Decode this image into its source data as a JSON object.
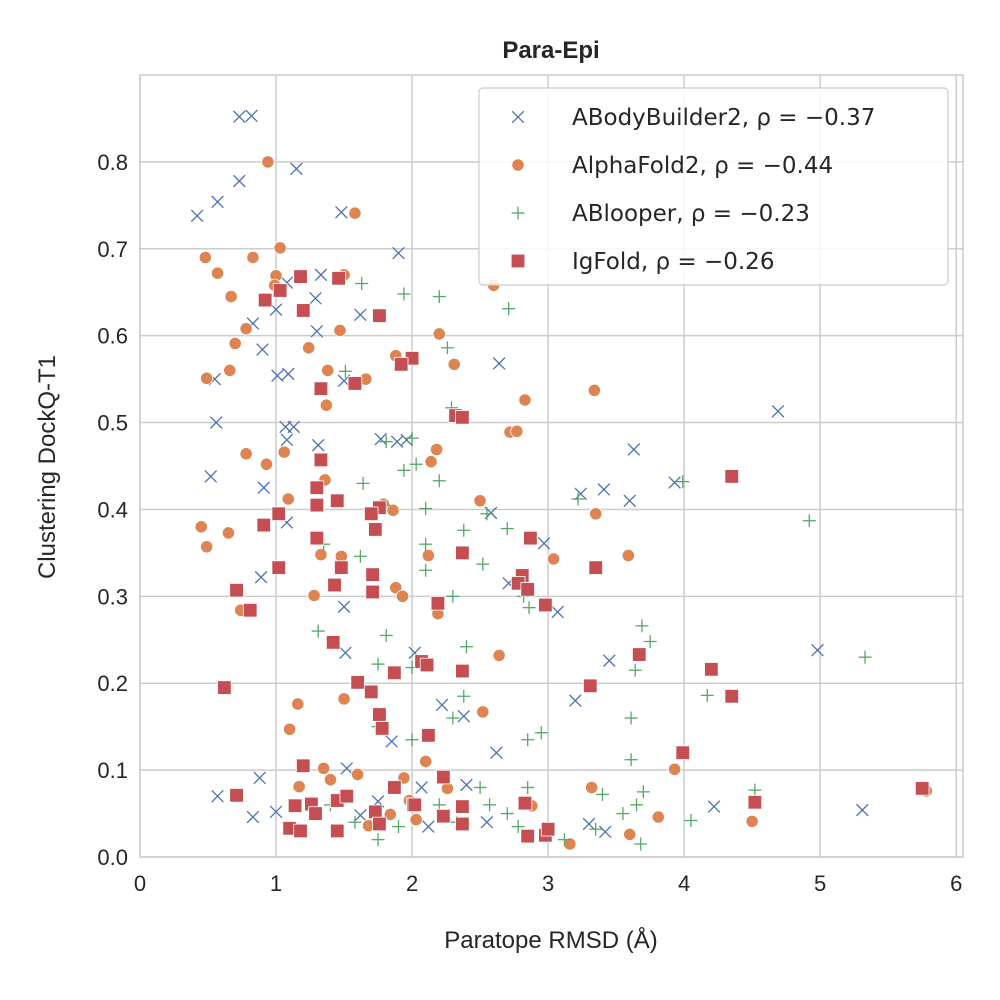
{
  "chart_data": {
    "type": "scatter",
    "title": "Para-Epi",
    "xlabel": "Paratope RMSD (Å)",
    "ylabel": "Clustering DockQ-T1",
    "xlim": [
      0,
      6.05
    ],
    "ylim": [
      0,
      0.9
    ],
    "xticks": [
      "0",
      "1",
      "2",
      "3",
      "4",
      "5",
      "6"
    ],
    "yticks": [
      "0.0",
      "0.1",
      "0.2",
      "0.3",
      "0.4",
      "0.5",
      "0.6",
      "0.7",
      "0.8"
    ],
    "grid": true,
    "legend_position": "top-right",
    "series": [
      {
        "name": "ABodyBuilder2, ρ = −0.37",
        "marker": "x",
        "color": "#4c72b0",
        "points": [
          [
            0.42,
            0.738
          ],
          [
            0.73,
            0.852
          ],
          [
            0.82,
            0.853
          ],
          [
            0.73,
            0.778
          ],
          [
            0.57,
            0.754
          ],
          [
            1.15,
            0.792
          ],
          [
            1.48,
            0.742
          ],
          [
            1.9,
            0.695
          ],
          [
            1.33,
            0.67
          ],
          [
            1.08,
            0.661
          ],
          [
            1.0,
            0.63
          ],
          [
            1.29,
            0.643
          ],
          [
            0.83,
            0.614
          ],
          [
            1.62,
            0.624
          ],
          [
            1.3,
            0.605
          ],
          [
            0.9,
            0.584
          ],
          [
            1.01,
            0.554
          ],
          [
            1.09,
            0.556
          ],
          [
            0.55,
            0.55
          ],
          [
            1.5,
            0.548
          ],
          [
            2.64,
            0.568
          ],
          [
            0.56,
            0.5
          ],
          [
            1.07,
            0.495
          ],
          [
            1.13,
            0.495
          ],
          [
            1.08,
            0.48
          ],
          [
            1.31,
            0.474
          ],
          [
            1.77,
            0.481
          ],
          [
            1.89,
            0.478
          ],
          [
            1.96,
            0.48
          ],
          [
            4.69,
            0.513
          ],
          [
            0.52,
            0.438
          ],
          [
            3.63,
            0.469
          ],
          [
            0.91,
            0.425
          ],
          [
            3.24,
            0.418
          ],
          [
            3.41,
            0.423
          ],
          [
            3.6,
            0.41
          ],
          [
            3.93,
            0.431
          ],
          [
            2.58,
            0.396
          ],
          [
            1.08,
            0.385
          ],
          [
            0.89,
            0.322
          ],
          [
            2.97,
            0.361
          ],
          [
            2.71,
            0.315
          ],
          [
            3.07,
            0.282
          ],
          [
            1.5,
            0.288
          ],
          [
            1.51,
            0.235
          ],
          [
            2.02,
            0.235
          ],
          [
            3.45,
            0.226
          ],
          [
            4.98,
            0.238
          ],
          [
            2.22,
            0.175
          ],
          [
            2.38,
            0.162
          ],
          [
            3.2,
            0.18
          ],
          [
            1.85,
            0.133
          ],
          [
            2.62,
            0.12
          ],
          [
            0.88,
            0.091
          ],
          [
            1.52,
            0.102
          ],
          [
            0.57,
            0.07
          ],
          [
            0.83,
            0.046
          ],
          [
            1.0,
            0.052
          ],
          [
            1.75,
            0.064
          ],
          [
            2.07,
            0.08
          ],
          [
            2.4,
            0.083
          ],
          [
            2.55,
            0.04
          ],
          [
            2.12,
            0.035
          ],
          [
            3.3,
            0.038
          ],
          [
            3.42,
            0.029
          ],
          [
            4.22,
            0.058
          ],
          [
            5.31,
            0.054
          ],
          [
            1.62,
            0.048
          ]
        ]
      },
      {
        "name": "AlphaFold2, ρ = −0.44",
        "marker": "o",
        "color": "#dd8452",
        "points": [
          [
            0.94,
            0.8
          ],
          [
            1.58,
            0.741
          ],
          [
            0.48,
            0.69
          ],
          [
            0.83,
            0.69
          ],
          [
            1.03,
            0.701
          ],
          [
            0.57,
            0.672
          ],
          [
            0.67,
            0.645
          ],
          [
            1.0,
            0.669
          ],
          [
            0.99,
            0.658
          ],
          [
            1.5,
            0.67
          ],
          [
            1.47,
            0.606
          ],
          [
            0.7,
            0.591
          ],
          [
            0.78,
            0.608
          ],
          [
            1.24,
            0.586
          ],
          [
            1.38,
            0.56
          ],
          [
            1.88,
            0.577
          ],
          [
            2.2,
            0.602
          ],
          [
            2.31,
            0.567
          ],
          [
            2.6,
            0.658
          ],
          [
            0.49,
            0.551
          ],
          [
            0.66,
            0.56
          ],
          [
            1.66,
            0.55
          ],
          [
            1.37,
            0.52
          ],
          [
            2.83,
            0.526
          ],
          [
            3.34,
            0.537
          ],
          [
            2.72,
            0.489
          ],
          [
            2.77,
            0.49
          ],
          [
            0.78,
            0.464
          ],
          [
            0.93,
            0.452
          ],
          [
            1.06,
            0.466
          ],
          [
            2.18,
            0.469
          ],
          [
            2.14,
            0.455
          ],
          [
            0.45,
            0.38
          ],
          [
            0.49,
            0.357
          ],
          [
            0.65,
            0.373
          ],
          [
            1.09,
            0.412
          ],
          [
            1.36,
            0.434
          ],
          [
            1.79,
            0.406
          ],
          [
            1.86,
            0.399
          ],
          [
            2.5,
            0.41
          ],
          [
            3.35,
            0.395
          ],
          [
            1.33,
            0.348
          ],
          [
            1.48,
            0.346
          ],
          [
            2.12,
            0.347
          ],
          [
            3.04,
            0.343
          ],
          [
            3.59,
            0.347
          ],
          [
            0.74,
            0.284
          ],
          [
            1.28,
            0.301
          ],
          [
            1.88,
            0.31
          ],
          [
            1.93,
            0.3
          ],
          [
            2.19,
            0.28
          ],
          [
            2.64,
            0.232
          ],
          [
            1.1,
            0.147
          ],
          [
            1.16,
            0.176
          ],
          [
            1.5,
            0.182
          ],
          [
            2.52,
            0.167
          ],
          [
            1.17,
            0.081
          ],
          [
            1.35,
            0.102
          ],
          [
            1.4,
            0.089
          ],
          [
            1.6,
            0.095
          ],
          [
            1.94,
            0.091
          ],
          [
            1.98,
            0.065
          ],
          [
            2.1,
            0.11
          ],
          [
            1.84,
            0.049
          ],
          [
            1.68,
            0.036
          ],
          [
            2.03,
            0.043
          ],
          [
            2.26,
            0.079
          ],
          [
            2.88,
            0.059
          ],
          [
            3.16,
            0.015
          ],
          [
            3.32,
            0.08
          ],
          [
            3.6,
            0.026
          ],
          [
            3.81,
            0.046
          ],
          [
            3.93,
            0.101
          ],
          [
            4.5,
            0.041
          ],
          [
            5.78,
            0.076
          ]
        ]
      },
      {
        "name": "ABlooper, ρ = −0.23",
        "marker": "+",
        "color": "#55a868",
        "points": [
          [
            1.63,
            0.66
          ],
          [
            1.94,
            0.648
          ],
          [
            2.2,
            0.645
          ],
          [
            2.26,
            0.586
          ],
          [
            2.71,
            0.631
          ],
          [
            1.51,
            0.559
          ],
          [
            2.29,
            0.517
          ],
          [
            1.81,
            0.478
          ],
          [
            2.0,
            0.482
          ],
          [
            1.94,
            0.445
          ],
          [
            2.03,
            0.452
          ],
          [
            2.2,
            0.433
          ],
          [
            1.64,
            0.43
          ],
          [
            1.79,
            0.405
          ],
          [
            2.1,
            0.401
          ],
          [
            2.38,
            0.376
          ],
          [
            2.55,
            0.395
          ],
          [
            2.7,
            0.378
          ],
          [
            3.22,
            0.412
          ],
          [
            3.99,
            0.432
          ],
          [
            4.92,
            0.387
          ],
          [
            1.35,
            0.36
          ],
          [
            1.62,
            0.346
          ],
          [
            2.1,
            0.36
          ],
          [
            2.1,
            0.33
          ],
          [
            2.52,
            0.337
          ],
          [
            2.82,
            0.3
          ],
          [
            2.86,
            0.287
          ],
          [
            2.3,
            0.3
          ],
          [
            1.31,
            0.26
          ],
          [
            1.81,
            0.255
          ],
          [
            2.4,
            0.242
          ],
          [
            1.75,
            0.222
          ],
          [
            2.0,
            0.218
          ],
          [
            3.69,
            0.266
          ],
          [
            3.64,
            0.215
          ],
          [
            3.75,
            0.248
          ],
          [
            5.33,
            0.23
          ],
          [
            2.38,
            0.185
          ],
          [
            2.3,
            0.16
          ],
          [
            3.61,
            0.16
          ],
          [
            4.17,
            0.186
          ],
          [
            1.75,
            0.15
          ],
          [
            2.0,
            0.135
          ],
          [
            2.85,
            0.135
          ],
          [
            2.95,
            0.143
          ],
          [
            3.61,
            0.112
          ],
          [
            2.5,
            0.08
          ],
          [
            2.57,
            0.06
          ],
          [
            2.7,
            0.05
          ],
          [
            2.85,
            0.08
          ],
          [
            3.4,
            0.072
          ],
          [
            3.65,
            0.06
          ],
          [
            3.7,
            0.075
          ],
          [
            4.05,
            0.042
          ],
          [
            4.52,
            0.077
          ],
          [
            1.4,
            0.06
          ],
          [
            1.58,
            0.04
          ],
          [
            1.75,
            0.02
          ],
          [
            1.9,
            0.035
          ],
          [
            2.2,
            0.06
          ],
          [
            2.33,
            0.04
          ],
          [
            2.78,
            0.035
          ],
          [
            3.12,
            0.02
          ],
          [
            3.35,
            0.032
          ],
          [
            3.68,
            0.015
          ],
          [
            3.55,
            0.05
          ]
        ]
      },
      {
        "name": "IgFold, ρ = −0.26",
        "marker": "s",
        "color": "#c44e52",
        "points": [
          [
            1.18,
            0.668
          ],
          [
            1.46,
            0.666
          ],
          [
            0.92,
            0.641
          ],
          [
            1.03,
            0.652
          ],
          [
            1.2,
            0.629
          ],
          [
            1.76,
            0.623
          ],
          [
            1.58,
            0.545
          ],
          [
            2.0,
            0.574
          ],
          [
            1.92,
            0.567
          ],
          [
            1.33,
            0.539
          ],
          [
            2.32,
            0.508
          ],
          [
            2.37,
            0.506
          ],
          [
            1.33,
            0.457
          ],
          [
            1.3,
            0.425
          ],
          [
            1.45,
            0.41
          ],
          [
            1.3,
            0.405
          ],
          [
            1.76,
            0.402
          ],
          [
            1.7,
            0.395
          ],
          [
            1.73,
            0.377
          ],
          [
            0.91,
            0.382
          ],
          [
            1.02,
            0.395
          ],
          [
            1.3,
            0.367
          ],
          [
            2.37,
            0.35
          ],
          [
            2.87,
            0.367
          ],
          [
            3.35,
            0.333
          ],
          [
            4.35,
            0.438
          ],
          [
            1.02,
            0.333
          ],
          [
            1.43,
            0.313
          ],
          [
            1.48,
            0.333
          ],
          [
            1.71,
            0.305
          ],
          [
            1.71,
            0.325
          ],
          [
            2.81,
            0.324
          ],
          [
            2.78,
            0.315
          ],
          [
            2.85,
            0.308
          ],
          [
            2.98,
            0.29
          ],
          [
            0.71,
            0.307
          ],
          [
            0.81,
            0.284
          ],
          [
            2.19,
            0.292
          ],
          [
            1.42,
            0.247
          ],
          [
            2.07,
            0.225
          ],
          [
            2.11,
            0.221
          ],
          [
            2.37,
            0.214
          ],
          [
            3.67,
            0.233
          ],
          [
            4.2,
            0.216
          ],
          [
            0.62,
            0.195
          ],
          [
            1.6,
            0.201
          ],
          [
            1.7,
            0.19
          ],
          [
            1.76,
            0.164
          ],
          [
            1.78,
            0.148
          ],
          [
            1.87,
            0.212
          ],
          [
            2.12,
            0.14
          ],
          [
            3.31,
            0.197
          ],
          [
            4.35,
            0.185
          ],
          [
            3.99,
            0.12
          ],
          [
            1.2,
            0.105
          ],
          [
            1.45,
            0.065
          ],
          [
            1.52,
            0.07
          ],
          [
            1.87,
            0.08
          ],
          [
            2.01,
            0.06
          ],
          [
            2.23,
            0.092
          ],
          [
            2.37,
            0.058
          ],
          [
            0.71,
            0.071
          ],
          [
            1.14,
            0.059
          ],
          [
            1.1,
            0.033
          ],
          [
            1.18,
            0.03
          ],
          [
            1.26,
            0.061
          ],
          [
            1.29,
            0.05
          ],
          [
            1.45,
            0.03
          ],
          [
            1.73,
            0.052
          ],
          [
            1.76,
            0.038
          ],
          [
            2.02,
            0.06
          ],
          [
            2.23,
            0.047
          ],
          [
            2.37,
            0.038
          ],
          [
            2.83,
            0.062
          ],
          [
            2.85,
            0.024
          ],
          [
            2.98,
            0.025
          ],
          [
            3.0,
            0.032
          ],
          [
            4.52,
            0.063
          ],
          [
            5.75,
            0.079
          ]
        ]
      }
    ]
  }
}
